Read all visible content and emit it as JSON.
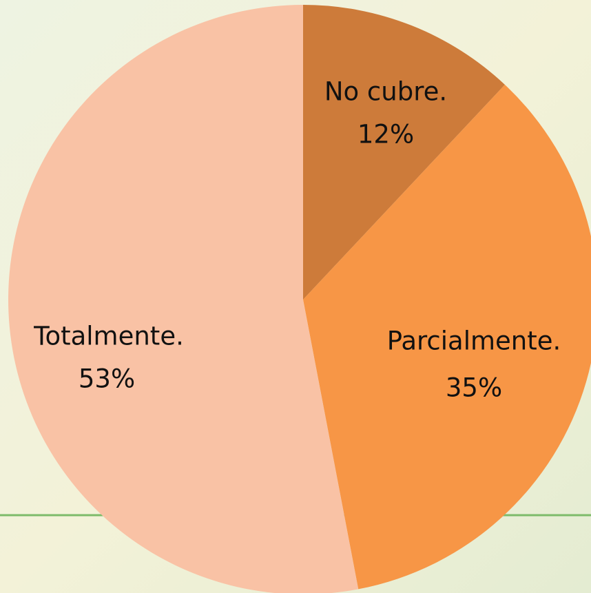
{
  "chart_data": {
    "type": "pie",
    "categories": [
      "No cubre.",
      "Parcialmente.",
      "Totalmente."
    ],
    "values": [
      12,
      35,
      53
    ],
    "value_labels": [
      "12%",
      "35%",
      "53%"
    ],
    "colors": [
      "#cd7b3a",
      "#f79646",
      "#f9c2a5"
    ]
  }
}
